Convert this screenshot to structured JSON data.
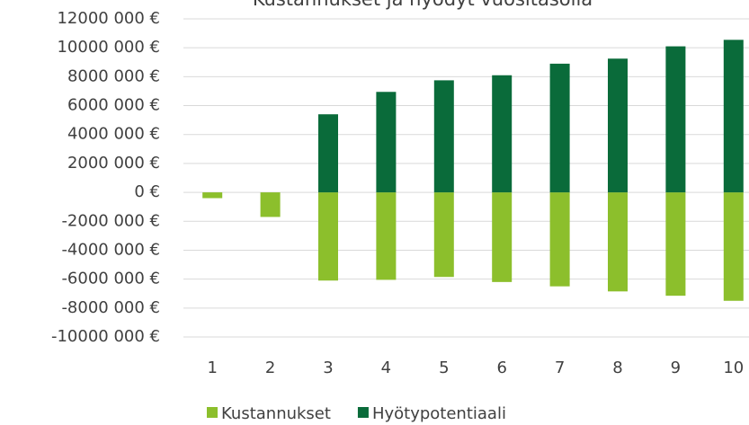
{
  "chart_data": {
    "type": "bar",
    "stacked": true,
    "title": "Kustannukset ja hyödyt vuositasolla",
    "categories": [
      "1",
      "2",
      "3",
      "4",
      "5",
      "6",
      "7",
      "8",
      "9",
      "10"
    ],
    "series": [
      {
        "name": "Kustannukset",
        "color": "#8cbf2c",
        "values": [
          -400000,
          -1700000,
          -6100000,
          -6050000,
          -5850000,
          -6200000,
          -6500000,
          -6850000,
          -7150000,
          -7500000
        ]
      },
      {
        "name": "Hyötypotentiaali",
        "color": "#0a6b3a",
        "values": [
          0,
          0,
          5400000,
          6950000,
          7750000,
          8100000,
          8900000,
          9250000,
          10100000,
          10550000
        ]
      }
    ],
    "ylim": [
      -10000000,
      12000000
    ],
    "yticks": [
      {
        "value": -10000000,
        "label": "-10000 000 €"
      },
      {
        "value": -8000000,
        "label": "-8000 000 €"
      },
      {
        "value": -6000000,
        "label": "-6000 000 €"
      },
      {
        "value": -4000000,
        "label": "-4000 000 €"
      },
      {
        "value": -2000000,
        "label": "-2000 000 €"
      },
      {
        "value": 0,
        "label": "0 €"
      },
      {
        "value": 2000000,
        "label": "2000 000 €"
      },
      {
        "value": 4000000,
        "label": "4000 000 €"
      },
      {
        "value": 6000000,
        "label": "6000 000 €"
      },
      {
        "value": 8000000,
        "label": "8000 000 €"
      },
      {
        "value": 10000000,
        "label": "10000 000 €"
      },
      {
        "value": 12000000,
        "label": "12000 000 €"
      }
    ],
    "grid": true,
    "legend": "bottom"
  }
}
